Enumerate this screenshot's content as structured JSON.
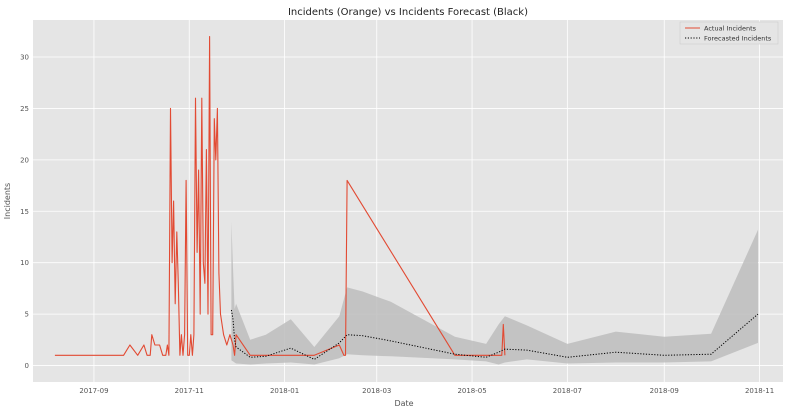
{
  "chart_data": {
    "type": "line",
    "title": "Incidents (Orange) vs Incidents Forecast (Black)",
    "xlabel": "Date",
    "ylabel": "Incidents",
    "xlim": [
      "2017-07-24",
      "2018-11-16"
    ],
    "ylim": [
      -1.6,
      33.6
    ],
    "x_ticks": [
      "2017-09",
      "2017-11",
      "2018-01",
      "2018-03",
      "2018-05",
      "2018-07",
      "2018-09",
      "2018-11"
    ],
    "y_ticks": [
      0,
      5,
      10,
      15,
      20,
      25,
      30
    ],
    "grid": true,
    "legend": "top-right",
    "colors": {
      "background": "#e5e5e5",
      "grid": "#ffffff",
      "actual": "#e24a33",
      "forecast": "#000000",
      "band": "#bdbdbd"
    },
    "series": [
      {
        "name": "Actual Incidents",
        "style": "solid",
        "x": [
          "2017-08-07",
          "2017-09-20",
          "2017-09-24",
          "2017-09-29",
          "2017-10-03",
          "2017-10-05",
          "2017-10-07",
          "2017-10-08",
          "2017-10-10",
          "2017-10-13",
          "2017-10-15",
          "2017-10-16",
          "2017-10-17",
          "2017-10-18",
          "2017-10-19",
          "2017-10-20",
          "2017-10-21",
          "2017-10-22",
          "2017-10-23",
          "2017-10-24",
          "2017-10-25",
          "2017-10-26",
          "2017-10-27",
          "2017-10-28",
          "2017-10-29",
          "2017-10-30",
          "2017-10-31",
          "2017-11-01",
          "2017-11-02",
          "2017-11-03",
          "2017-11-04",
          "2017-11-05",
          "2017-11-06",
          "2017-11-07",
          "2017-11-08",
          "2017-11-09",
          "2017-11-10",
          "2017-11-11",
          "2017-11-12",
          "2017-11-13",
          "2017-11-14",
          "2017-11-15",
          "2017-11-16",
          "2017-11-17",
          "2017-11-18",
          "2017-11-19",
          "2017-11-20",
          "2017-11-21",
          "2017-11-23",
          "2017-11-25",
          "2017-11-27",
          "2017-11-29",
          "2017-11-30",
          "2017-12-01",
          "2017-12-10",
          "2018-01-20",
          "2018-02-05",
          "2018-02-08",
          "2018-02-09",
          "2018-02-10",
          "2018-04-20",
          "2018-05-10",
          "2018-05-18",
          "2018-05-20",
          "2018-05-21",
          "2018-05-22"
        ],
        "values": [
          1,
          1,
          2,
          1,
          2,
          1,
          1,
          3,
          2,
          2,
          1,
          1,
          1,
          2,
          1,
          25,
          10,
          16,
          6,
          13,
          8,
          1,
          3,
          1,
          3,
          18,
          1,
          1,
          3,
          1,
          3,
          26,
          11,
          19,
          5,
          26,
          10,
          8,
          21,
          5,
          32,
          3,
          3,
          24,
          20,
          25,
          9,
          5,
          3,
          2,
          3,
          2,
          1,
          3,
          1,
          1,
          2,
          1,
          1,
          18,
          1,
          1,
          1,
          1,
          4,
          1
        ]
      },
      {
        "name": "Forecasted Incidents",
        "style": "dotted",
        "x": [
          "2017-11-28",
          "2017-11-29",
          "2017-11-30",
          "2017-12-01",
          "2017-12-10",
          "2017-12-20",
          "2018-01-05",
          "2018-01-20",
          "2018-02-05",
          "2018-02-10",
          "2018-02-20",
          "2018-03-10",
          "2018-04-20",
          "2018-05-10",
          "2018-05-18",
          "2018-05-22",
          "2018-06-05",
          "2018-07-01",
          "2018-08-01",
          "2018-09-01",
          "2018-10-01",
          "2018-10-31"
        ],
        "values": [
          5.4,
          4.5,
          2.5,
          1.8,
          0.8,
          0.9,
          1.7,
          0.6,
          2.2,
          3.0,
          2.9,
          2.4,
          1.1,
          0.8,
          1.3,
          1.6,
          1.5,
          0.8,
          1.3,
          1.0,
          1.1,
          5.0
        ],
        "lower": [
          0.5,
          0.4,
          0.3,
          0.2,
          0.1,
          0.2,
          0.3,
          0.1,
          0.7,
          1.1,
          1.0,
          0.9,
          0.6,
          0.4,
          0.1,
          0.3,
          0.6,
          0.2,
          0.3,
          0.3,
          0.4,
          2.2
        ],
        "upper": [
          14.0,
          9.5,
          5.5,
          6.0,
          2.5,
          3.0,
          4.5,
          1.8,
          4.8,
          7.6,
          7.2,
          6.2,
          2.8,
          2.1,
          4.0,
          4.8,
          3.9,
          2.1,
          3.3,
          2.8,
          3.1,
          13.2
        ]
      }
    ]
  }
}
